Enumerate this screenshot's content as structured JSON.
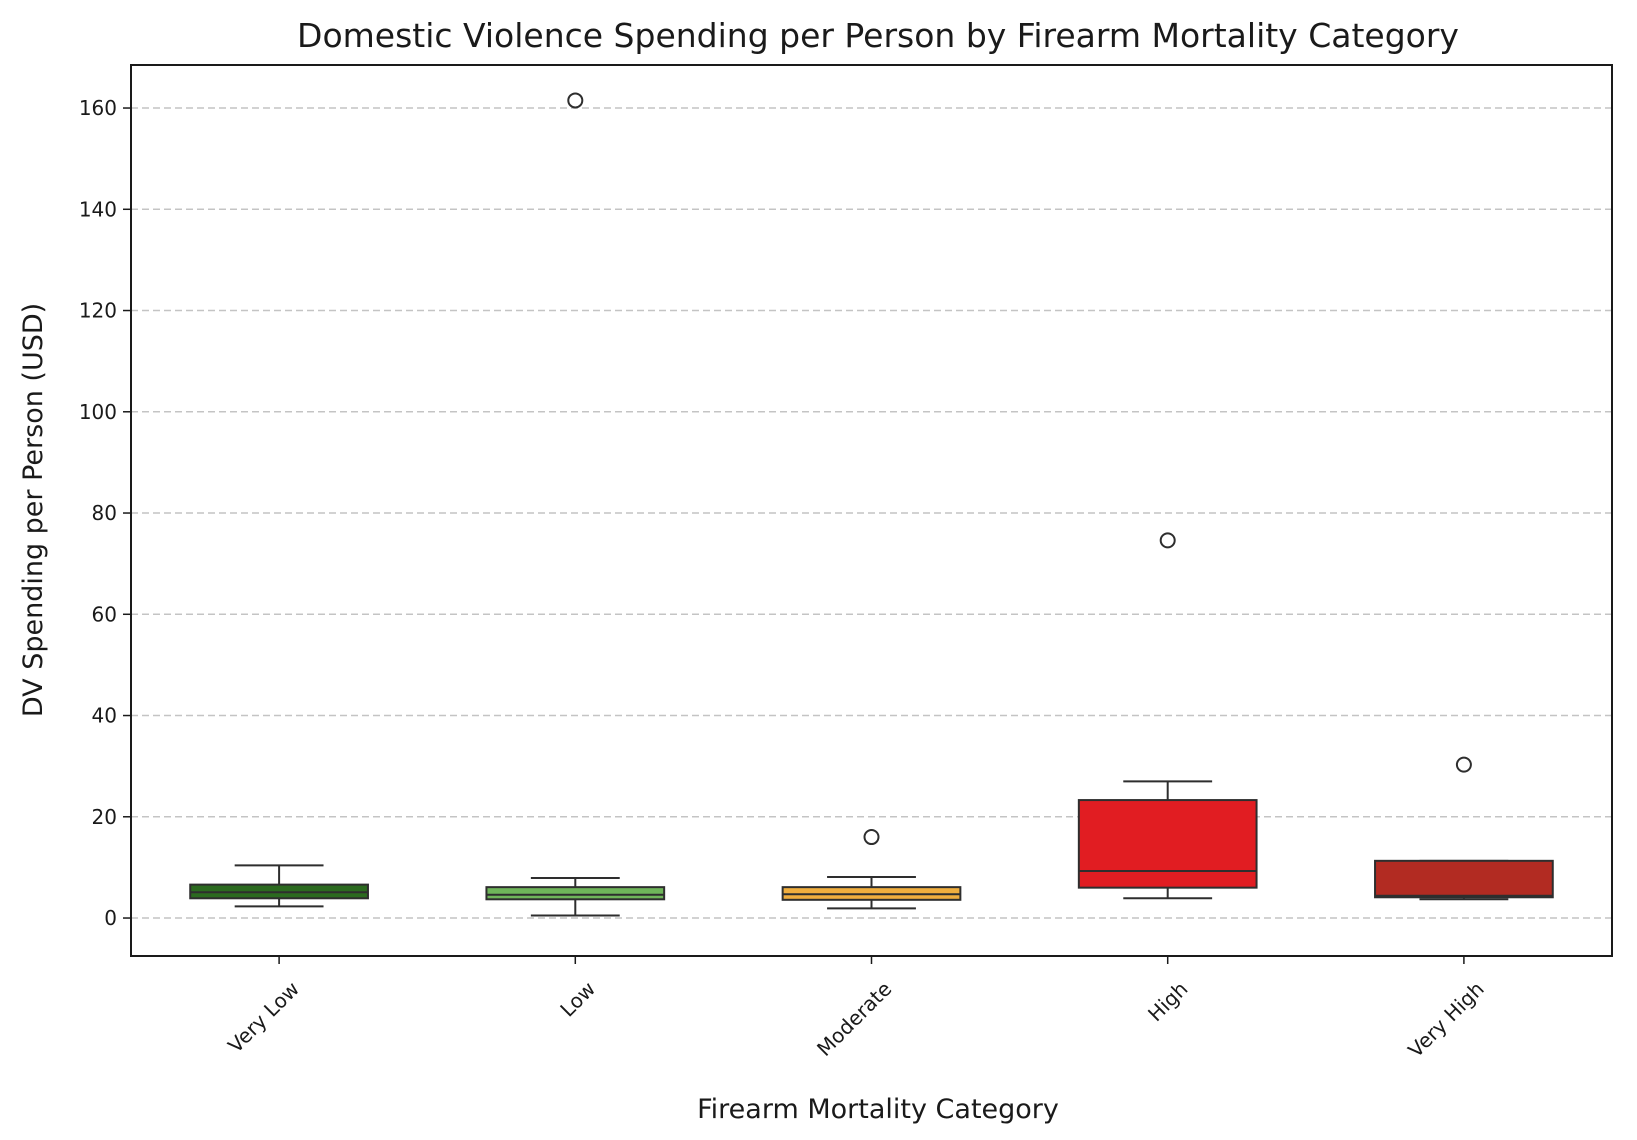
{
  "chart_data": {
    "type": "box",
    "title": "Domestic Violence Spending per Person by Firearm Mortality Category",
    "xlabel": "Firearm Mortality Category",
    "ylabel": "DV Spending per Person (USD)",
    "ylim": [
      -7.5,
      168.5
    ],
    "yticks": [
      0,
      20,
      40,
      60,
      80,
      100,
      120,
      140,
      160
    ],
    "grid": "y-dashed",
    "categories": [
      "Very Low",
      "Low",
      "Moderate",
      "High",
      "Very High"
    ],
    "boxes": [
      {
        "category": "Very Low",
        "whisker_low": 2.3,
        "q1": 3.9,
        "median": 5.1,
        "q3": 6.6,
        "whisker_high": 10.4,
        "outliers": [],
        "color": "#2b6a1f"
      },
      {
        "category": "Low",
        "whisker_low": 0.5,
        "q1": 3.7,
        "median": 4.6,
        "q3": 6.1,
        "whisker_high": 7.9,
        "outliers": [
          161.5
        ],
        "color": "#6fb55a"
      },
      {
        "category": "Moderate",
        "whisker_low": 1.9,
        "q1": 3.6,
        "median": 4.7,
        "q3": 6.1,
        "whisker_high": 8.1,
        "outliers": [
          16.0
        ],
        "color": "#f0ae3e"
      },
      {
        "category": "High",
        "whisker_low": 3.9,
        "q1": 6.0,
        "median": 9.3,
        "q3": 23.3,
        "whisker_high": 27.0,
        "outliers": [
          74.6
        ],
        "color": "#e11d22"
      },
      {
        "category": "Very High",
        "whisker_low": 3.7,
        "q1": 4.1,
        "median": 4.4,
        "q3": 11.3,
        "whisker_high": 11.3,
        "outliers": [
          30.3
        ],
        "color": "#b22b22"
      }
    ]
  }
}
